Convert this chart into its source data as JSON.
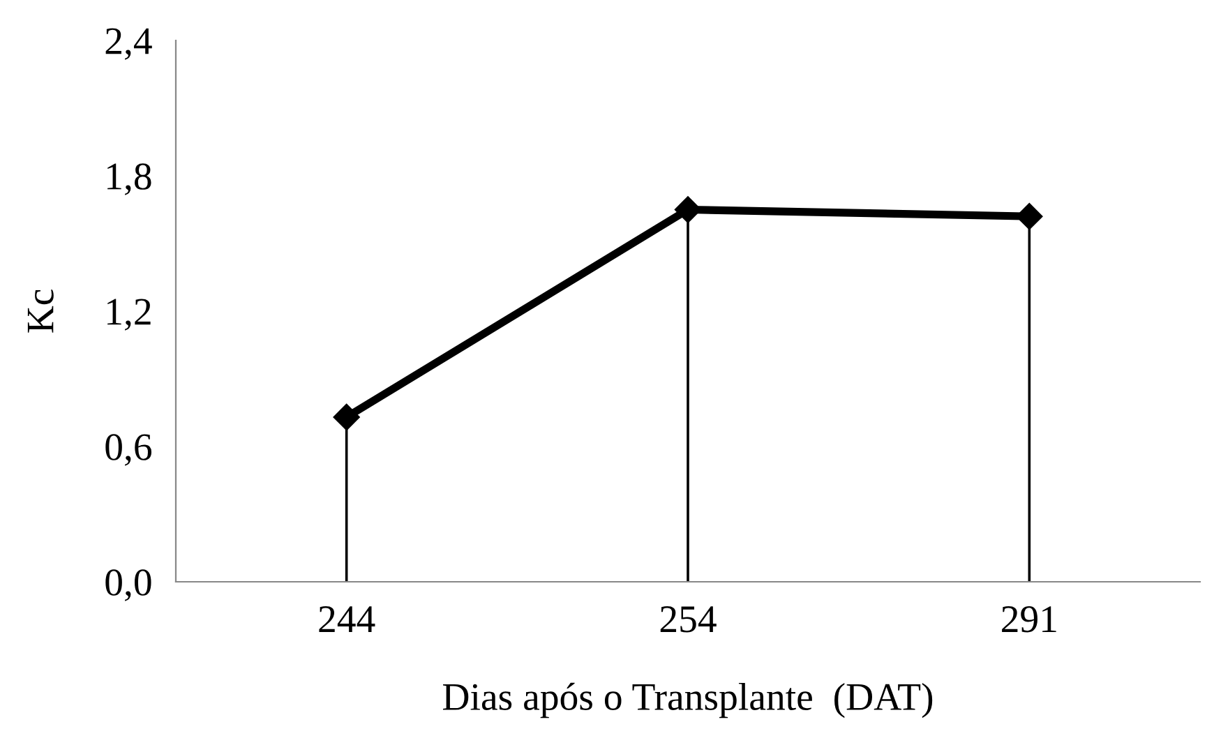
{
  "chart_data": {
    "type": "line",
    "xlabel": "Dias após o Transplante  (DAT)",
    "ylabel": "Kc",
    "categories": [
      "244",
      "254",
      "291"
    ],
    "series": [
      {
        "color": "#000000",
        "values": [
          0.73,
          1.65,
          1.62
        ],
        "errors": [
          [
            0,
            0.73
          ],
          [
            0,
            1.65
          ],
          [
            0,
            1.62
          ]
        ]
      }
    ],
    "marker": "diamond",
    "line_style": "solid",
    "ylim": [
      0,
      2.4
    ],
    "yticks": [
      {
        "value": 0,
        "label": "0,0"
      },
      {
        "value": 0.6,
        "label": "0,6"
      },
      {
        "value": 1.2,
        "label": "1,2"
      },
      {
        "value": 1.8,
        "label": "1,8"
      },
      {
        "value": 2.4,
        "label": "2,4"
      }
    ],
    "grid": false,
    "legend": false
  }
}
